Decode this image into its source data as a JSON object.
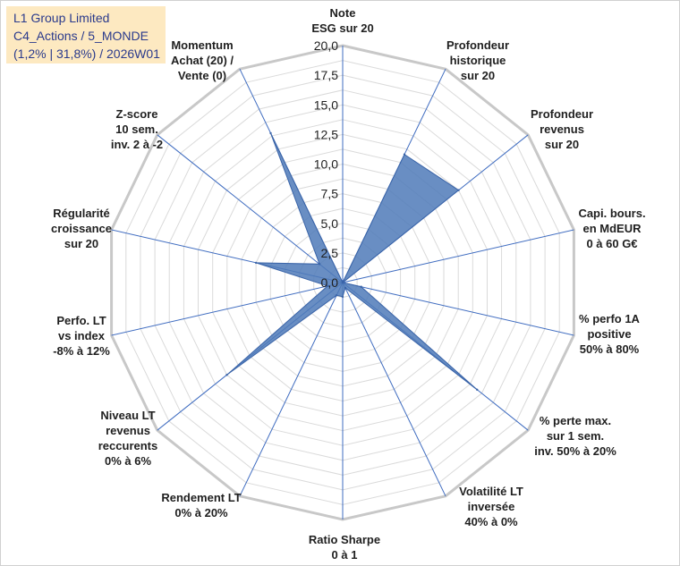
{
  "chart_data": {
    "type": "radar",
    "title_box": [
      "L1 Group Limited",
      "C4_Actions / 5_MONDE",
      "(1,2% | 31,8%) / 2026W01"
    ],
    "rlim": [
      0,
      20
    ],
    "ticks": [
      "0,0",
      "2,5",
      "5,0",
      "7,5",
      "10,0",
      "12,5",
      "15,0",
      "17,5",
      "20,0"
    ],
    "grid": true,
    "series_color": "#4f7ab8",
    "axes": [
      {
        "label": [
          "Note",
          "ESG sur 20"
        ],
        "value": 0
      },
      {
        "label": [
          "Profondeur",
          "historique",
          "sur 20"
        ],
        "value": 12
      },
      {
        "label": [
          "Profondeur",
          "revenus",
          "sur 20"
        ],
        "value": 12.5
      },
      {
        "label": [
          "Capi. bours.",
          "en MdEUR",
          "0 à 60 G€"
        ],
        "value": 0
      },
      {
        "label": [
          "% perfo 1A",
          "positive",
          "50% à 80%"
        ],
        "value": 1.6
      },
      {
        "label": [
          "% perte max.",
          "sur 1 sem.",
          "inv. 50% à 20%"
        ],
        "value": 14.5
      },
      {
        "label": [
          "Volatilité LT",
          "inversée",
          "40% à 0%"
        ],
        "value": 0.5
      },
      {
        "label": [
          "Ratio Sharpe",
          "0 à 1"
        ],
        "value": 1.2
      },
      {
        "label": [
          "Rendement LT",
          "0% à 20%"
        ],
        "value": 1.2
      },
      {
        "label": [
          "Niveau LT",
          "revenus",
          "reccurents",
          "0% à 6%"
        ],
        "value": 12.5
      },
      {
        "label": [
          "Perfo. LT",
          "vs index",
          "-8% à 12%"
        ],
        "value": 1.3
      },
      {
        "label": [
          "Régularité",
          "croissance",
          "sur 20"
        ],
        "value": 7.5
      },
      {
        "label": [
          "Z-score",
          "10 sem.",
          "inv. 2 à -2"
        ],
        "value": 2.5
      },
      {
        "label": [
          "Momentum",
          "Achat (20) /",
          "Vente (0)"
        ],
        "value": 14
      }
    ]
  }
}
